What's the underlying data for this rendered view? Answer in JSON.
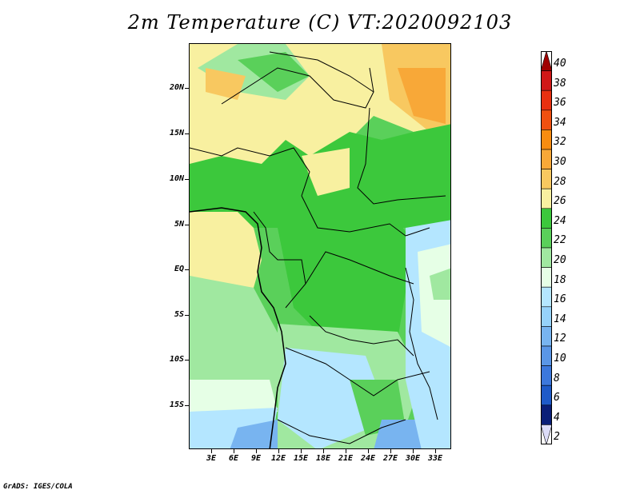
{
  "title": "2m Temperature (C) VT:2020092103",
  "credit": "GrADS: IGES/COLA",
  "lat_ticks": [
    "20N",
    "15N",
    "10N",
    "5N",
    "EQ",
    "5S",
    "10S",
    "15S"
  ],
  "lon_ticks": [
    "3E",
    "6E",
    "9E",
    "12E",
    "15E",
    "18E",
    "21E",
    "24E",
    "27E",
    "30E",
    "33E"
  ],
  "colorbar": {
    "labels": [
      "40",
      "38",
      "36",
      "34",
      "32",
      "30",
      "28",
      "26",
      "24",
      "22",
      "20",
      "18",
      "16",
      "14",
      "12",
      "10",
      "8",
      "6",
      "4",
      "2"
    ],
    "colors": [
      "#a00000",
      "#d01818",
      "#e83010",
      "#f05010",
      "#f88c10",
      "#f8a838",
      "#f8c860",
      "#f8f0a0",
      "#3cc83c",
      "#5ad05a",
      "#a0e8a0",
      "#e6ffe6",
      "#b4e6ff",
      "#96d2fa",
      "#78b4f0",
      "#5a96e6",
      "#3c78dc",
      "#1e5ac8",
      "#0a1e78",
      "#dcdcf8"
    ]
  },
  "chart_data": {
    "type": "heatmap",
    "title": "2m Temperature (C) VT:2020092103",
    "x_ticks": [
      "3E",
      "6E",
      "9E",
      "12E",
      "15E",
      "18E",
      "21E",
      "24E",
      "27E",
      "30E",
      "33E"
    ],
    "y_ticks": [
      "20N",
      "15N",
      "10N",
      "5N",
      "EQ",
      "5S",
      "10S",
      "15S"
    ],
    "xlim": [
      0,
      35
    ],
    "ylim": [
      -20,
      24.5
    ],
    "colorbar_levels": [
      2,
      4,
      6,
      8,
      10,
      12,
      14,
      16,
      18,
      20,
      22,
      24,
      26,
      28,
      30,
      32,
      34,
      36,
      38,
      40
    ]
  }
}
